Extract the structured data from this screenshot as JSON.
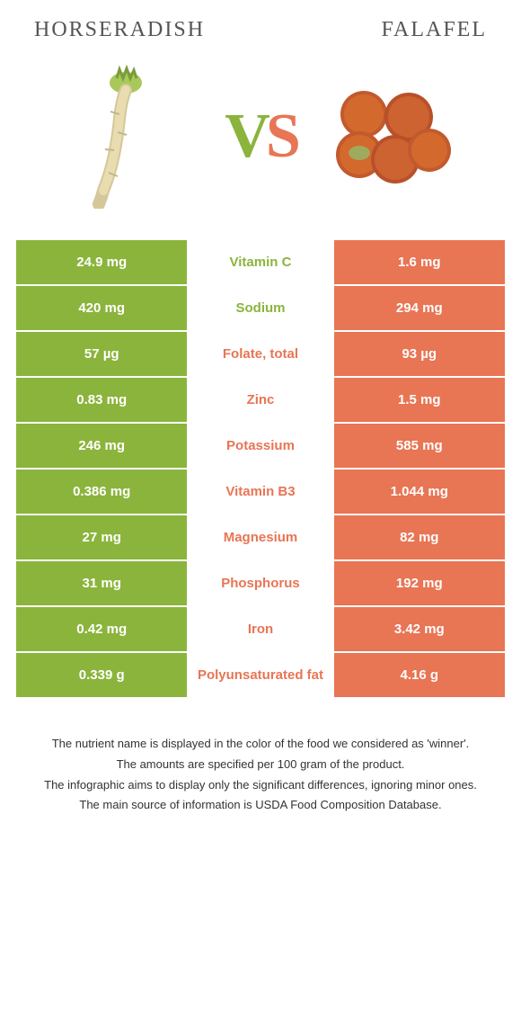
{
  "food_left": {
    "title": "Horseradish",
    "color": "#8bb43c"
  },
  "food_right": {
    "title": "Falafel",
    "color": "#e87554"
  },
  "vs": {
    "v": "V",
    "s": "S"
  },
  "rows": [
    {
      "left": "24.9 mg",
      "nutrient": "Vitamin C",
      "right": "1.6 mg",
      "winner": "left"
    },
    {
      "left": "420 mg",
      "nutrient": "Sodium",
      "right": "294 mg",
      "winner": "left"
    },
    {
      "left": "57 µg",
      "nutrient": "Folate, total",
      "right": "93 µg",
      "winner": "right"
    },
    {
      "left": "0.83 mg",
      "nutrient": "Zinc",
      "right": "1.5 mg",
      "winner": "right"
    },
    {
      "left": "246 mg",
      "nutrient": "Potassium",
      "right": "585 mg",
      "winner": "right"
    },
    {
      "left": "0.386 mg",
      "nutrient": "Vitamin B3",
      "right": "1.044 mg",
      "winner": "right"
    },
    {
      "left": "27 mg",
      "nutrient": "Magnesium",
      "right": "82 mg",
      "winner": "right"
    },
    {
      "left": "31 mg",
      "nutrient": "Phosphorus",
      "right": "192 mg",
      "winner": "right"
    },
    {
      "left": "0.42 mg",
      "nutrient": "Iron",
      "right": "3.42 mg",
      "winner": "right"
    },
    {
      "left": "0.339 g",
      "nutrient": "Polyunsaturated fat",
      "right": "4.16 g",
      "winner": "right"
    }
  ],
  "footer": {
    "line1": "The nutrient name is displayed in the color of the food we considered as 'winner'.",
    "line2": "The amounts are specified per 100 gram of the product.",
    "line3": "The infographic aims to display only the significant differences, ignoring minor ones.",
    "line4": "The main source of information is USDA Food Composition Database."
  },
  "colors": {
    "left_bg": "#8bb43c",
    "right_bg": "#e87554",
    "mid_bg": "#ffffff",
    "page_bg": "#ffffff"
  },
  "typography": {
    "title_fontsize": 24,
    "vs_fontsize": 70,
    "cell_fontsize": 15,
    "footer_fontsize": 13
  }
}
